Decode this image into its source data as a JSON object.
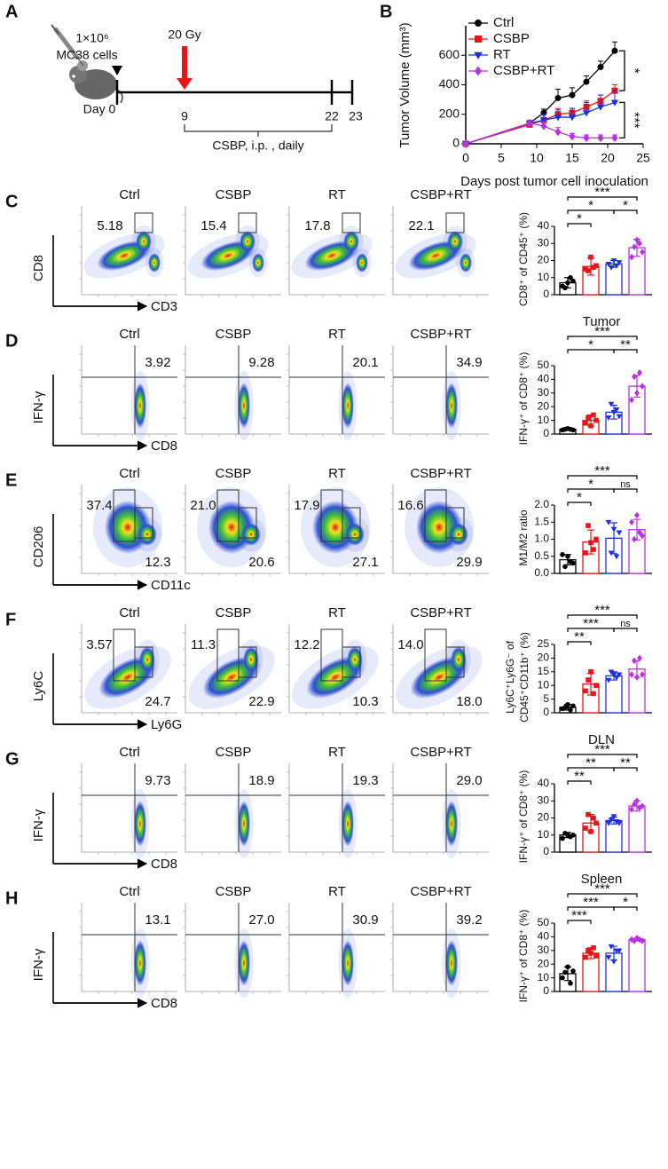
{
  "panel_a": {
    "label": "A",
    "cells": "1×10⁶",
    "cell_line": "MC38 cells",
    "dose": "20 Gy",
    "days": [
      "Day 0",
      "9",
      "22",
      "23"
    ],
    "treatment": "CSBP, i.p. , daily"
  },
  "chart_data": [
    {
      "type": "line",
      "panel_label": "B",
      "xlabel": "Days post tumor cell inoculation",
      "ylabel": "Tumor Volume (mm³)",
      "x": [
        0,
        9,
        11,
        13,
        15,
        17,
        19,
        21
      ],
      "xlim": [
        0,
        25
      ],
      "xticks": [
        0,
        5,
        10,
        15,
        20,
        25
      ],
      "ylim": [
        0,
        800
      ],
      "yticks": [
        0,
        200,
        400,
        600
      ],
      "series": [
        {
          "name": "Ctrl",
          "color": "#000000",
          "marker": "circle",
          "values": [
            0,
            140,
            210,
            310,
            330,
            420,
            520,
            630
          ],
          "errors": [
            0,
            15,
            25,
            60,
            50,
            40,
            40,
            60
          ]
        },
        {
          "name": "CSBP",
          "color": "#e8151b",
          "marker": "square",
          "values": [
            0,
            130,
            160,
            200,
            210,
            250,
            290,
            360
          ],
          "errors": [
            0,
            15,
            20,
            40,
            30,
            40,
            40,
            40
          ]
        },
        {
          "name": "RT",
          "color": "#1f2fe0",
          "marker": "triangle-down",
          "values": [
            0,
            140,
            160,
            180,
            180,
            210,
            250,
            280
          ],
          "errors": [
            0,
            20,
            40,
            50,
            60,
            70,
            80,
            80
          ]
        },
        {
          "name": "CSBP+RT",
          "color": "#b833e0",
          "marker": "diamond",
          "values": [
            0,
            140,
            120,
            80,
            50,
            40,
            40,
            40
          ],
          "errors": [
            0,
            20,
            30,
            30,
            20,
            20,
            20,
            20
          ]
        }
      ],
      "comparisons": [
        {
          "series": [
            0,
            1
          ],
          "label": "*"
        },
        {
          "series": [
            2,
            3
          ],
          "label": "***"
        }
      ]
    },
    {
      "type": "bar",
      "ylabel": "CD8⁺ of CD45⁺ (%)",
      "categories": [
        null,
        null,
        null,
        null
      ],
      "colors": [
        "#000000",
        "#e8151b",
        "#1f2fe0",
        "#b833e0"
      ],
      "markers": [
        "circle",
        "square",
        "triangle-down",
        "diamond"
      ],
      "values": [
        7,
        16.5,
        18,
        27.5
      ],
      "errors": [
        3,
        5,
        2,
        5
      ],
      "points": [
        [
          5,
          4,
          7,
          10,
          8
        ],
        [
          15,
          14,
          22,
          16,
          17
        ],
        [
          18,
          16,
          20,
          17,
          19
        ],
        [
          22,
          28,
          32,
          30,
          25
        ]
      ],
      "ylim": [
        0,
        40
      ],
      "yticks": [
        0,
        10,
        20,
        30,
        40
      ],
      "comparisons": [
        {
          "groups": [
            0,
            1
          ],
          "label": "*"
        },
        {
          "groups": [
            0,
            2
          ],
          "label": "*"
        },
        {
          "groups": [
            2,
            3
          ],
          "label": "*"
        },
        {
          "groups": [
            0,
            3
          ],
          "label": "***"
        }
      ]
    },
    {
      "type": "bar",
      "title": "Tumor",
      "ylabel": "IFN-γ⁺ of CD8⁺ (%)",
      "categories": [
        null,
        null,
        null,
        null
      ],
      "colors": [
        "#000000",
        "#e8151b",
        "#1f2fe0",
        "#b833e0"
      ],
      "markers": [
        "circle",
        "square",
        "triangle-down",
        "diamond"
      ],
      "values": [
        3.5,
        10,
        16,
        35
      ],
      "errors": [
        0.5,
        4,
        5,
        8
      ],
      "points": [
        [
          3,
          3.5,
          4,
          3.5,
          3
        ],
        [
          8,
          12,
          6,
          14,
          10
        ],
        [
          12,
          22,
          16,
          18,
          13
        ],
        [
          25,
          42,
          30,
          45,
          35
        ]
      ],
      "ylim": [
        0,
        50
      ],
      "yticks": [
        0,
        10,
        20,
        30,
        40,
        50
      ],
      "comparisons": [
        {
          "groups": [
            0,
            2
          ],
          "label": "*"
        },
        {
          "groups": [
            2,
            3
          ],
          "label": "**"
        },
        {
          "groups": [
            0,
            3
          ],
          "label": "***"
        }
      ]
    },
    {
      "type": "bar",
      "ylabel": "M1/M2 ratio",
      "categories": [
        null,
        null,
        null,
        null
      ],
      "colors": [
        "#000000",
        "#e8151b",
        "#1f2fe0",
        "#b833e0"
      ],
      "markers": [
        "circle",
        "square",
        "triangle-down",
        "diamond"
      ],
      "values": [
        0.4,
        0.92,
        1.03,
        1.28
      ],
      "errors": [
        0.15,
        0.35,
        0.45,
        0.3
      ],
      "points": [
        [
          0.55,
          0.2,
          0.5,
          0.35,
          0.3
        ],
        [
          0.6,
          1.4,
          0.9,
          0.7,
          1.0
        ],
        [
          1.5,
          0.6,
          1.3,
          0.5,
          1.2
        ],
        [
          1.5,
          1.0,
          1.7,
          1.2,
          1.1
        ]
      ],
      "ylim": [
        0,
        2
      ],
      "yticks": [
        {
          "value": 0,
          "label": "0.0"
        },
        0.5,
        {
          "value": 1,
          "label": "1.0"
        },
        1.5,
        {
          "value": 2,
          "label": "2.0"
        }
      ],
      "comparisons": [
        {
          "groups": [
            0,
            1
          ],
          "label": "*"
        },
        {
          "groups": [
            0,
            2
          ],
          "label": "*"
        },
        {
          "groups": [
            2,
            3
          ],
          "label": "ns"
        },
        {
          "groups": [
            0,
            3
          ],
          "label": "***"
        }
      ]
    },
    {
      "type": "bar",
      "ylabel": [
        "Ly6C⁺Ly6G⁻ of",
        "CD45⁺CD11b⁺ (%)"
      ],
      "categories": [
        null,
        null,
        null,
        null
      ],
      "colors": [
        "#000000",
        "#e8151b",
        "#1f2fe0",
        "#b833e0"
      ],
      "markers": [
        "circle",
        "square",
        "triangle-down",
        "diamond"
      ],
      "values": [
        2,
        10.5,
        13.5,
        16
      ],
      "errors": [
        1,
        4,
        1.5,
        3
      ],
      "points": [
        [
          1.5,
          2,
          3,
          1,
          2.5
        ],
        [
          8,
          12,
          15,
          7,
          10
        ],
        [
          12,
          15,
          14,
          13,
          14
        ],
        [
          14,
          19,
          13,
          20,
          14
        ]
      ],
      "ylim": [
        0,
        25
      ],
      "yticks": [
        0,
        5,
        10,
        15,
        20,
        25
      ],
      "comparisons": [
        {
          "groups": [
            0,
            1
          ],
          "label": "**"
        },
        {
          "groups": [
            0,
            2
          ],
          "label": "***"
        },
        {
          "groups": [
            2,
            3
          ],
          "label": "ns"
        },
        {
          "groups": [
            0,
            3
          ],
          "label": "***"
        }
      ]
    },
    {
      "type": "bar",
      "title": "DLN",
      "ylabel": "IFN-γ⁺ of CD8⁺ (%)",
      "categories": [
        null,
        null,
        null,
        null
      ],
      "colors": [
        "#000000",
        "#e8151b",
        "#1f2fe0",
        "#b833e0"
      ],
      "markers": [
        "circle",
        "square",
        "triangle-down",
        "diamond"
      ],
      "values": [
        10,
        17,
        18.5,
        27
      ],
      "errors": [
        1.5,
        5,
        2,
        3
      ],
      "points": [
        [
          8,
          11,
          10,
          9,
          10
        ],
        [
          14,
          22,
          12,
          20,
          17
        ],
        [
          17,
          19,
          21,
          18,
          17
        ],
        [
          25,
          28,
          30,
          26,
          27
        ]
      ],
      "ylim": [
        0,
        40
      ],
      "yticks": [
        0,
        10,
        20,
        30,
        40
      ],
      "comparisons": [
        {
          "groups": [
            0,
            1
          ],
          "label": "**"
        },
        {
          "groups": [
            0,
            2
          ],
          "label": "**"
        },
        {
          "groups": [
            2,
            3
          ],
          "label": "**"
        },
        {
          "groups": [
            0,
            3
          ],
          "label": "***"
        }
      ]
    },
    {
      "type": "bar",
      "title": "Spleen",
      "ylabel": "IFN-γ⁺ of CD8⁺ (%)",
      "categories": [
        null,
        null,
        null,
        null
      ],
      "colors": [
        "#000000",
        "#e8151b",
        "#1f2fe0",
        "#b833e0"
      ],
      "markers": [
        "circle",
        "square",
        "triangle-down",
        "diamond"
      ],
      "values": [
        13,
        28,
        28,
        38
      ],
      "errors": [
        5,
        4,
        5,
        1
      ],
      "points": [
        [
          10,
          14,
          18,
          6,
          15
        ],
        [
          25,
          30,
          28,
          32,
          26
        ],
        [
          25,
          33,
          22,
          30,
          30
        ],
        [
          38,
          37,
          39,
          38,
          37
        ]
      ],
      "ylim": [
        0,
        50
      ],
      "yticks": [
        0,
        10,
        20,
        30,
        40,
        50
      ],
      "comparisons": [
        {
          "groups": [
            0,
            1
          ],
          "label": "***"
        },
        {
          "groups": [
            0,
            2
          ],
          "label": "***"
        },
        {
          "groups": [
            2,
            3
          ],
          "label": "*"
        },
        {
          "groups": [
            0,
            3
          ],
          "label": "***"
        }
      ]
    }
  ],
  "flow_panels": [
    {
      "label": "C",
      "groups": [
        "Ctrl",
        "CSBP",
        "RT",
        "CSBP+RT"
      ],
      "y_axis": "CD8",
      "x_axis": "CD3",
      "gates": [
        [
          "5.18"
        ],
        [
          "15.4"
        ],
        [
          "17.8"
        ],
        [
          "22.1"
        ]
      ]
    },
    {
      "label": "D",
      "groups": [
        "Ctrl",
        "CSBP",
        "RT",
        "CSBP+RT"
      ],
      "y_axis": "IFN-γ",
      "x_axis": "CD8",
      "gates": [
        [
          "3.92"
        ],
        [
          "9.28"
        ],
        [
          "20.1"
        ],
        [
          "34.9"
        ]
      ]
    },
    {
      "label": "E",
      "groups": [
        "Ctrl",
        "CSBP",
        "RT",
        "CSBP+RT"
      ],
      "y_axis": "CD206",
      "x_axis": "CD11c",
      "gates": [
        [
          "37.4",
          "12.3"
        ],
        [
          "21.0",
          "20.6"
        ],
        [
          "17.9",
          "27.1"
        ],
        [
          "16.6",
          "29.9"
        ]
      ]
    },
    {
      "label": "F",
      "groups": [
        "Ctrl",
        "CSBP",
        "RT",
        "CSBP+RT"
      ],
      "y_axis": "Ly6C",
      "x_axis": "Ly6G",
      "gates": [
        [
          "3.57",
          "24.7"
        ],
        [
          "11.3",
          "22.9"
        ],
        [
          "12.2",
          "10.3"
        ],
        [
          "14.0",
          "18.0"
        ]
      ]
    },
    {
      "label": "G",
      "groups": [
        "Ctrl",
        "CSBP",
        "RT",
        "CSBP+RT"
      ],
      "y_axis": "IFN-γ",
      "x_axis": "CD8",
      "gates": [
        [
          "9.73"
        ],
        [
          "18.9"
        ],
        [
          "19.3"
        ],
        [
          "29.0"
        ]
      ]
    },
    {
      "label": "H",
      "groups": [
        "Ctrl",
        "CSBP",
        "RT",
        "CSBP+RT"
      ],
      "y_axis": "IFN-γ",
      "x_axis": "CD8",
      "gates": [
        [
          "13.1"
        ],
        [
          "27.0"
        ],
        [
          "30.9"
        ],
        [
          "39.2"
        ]
      ]
    }
  ]
}
